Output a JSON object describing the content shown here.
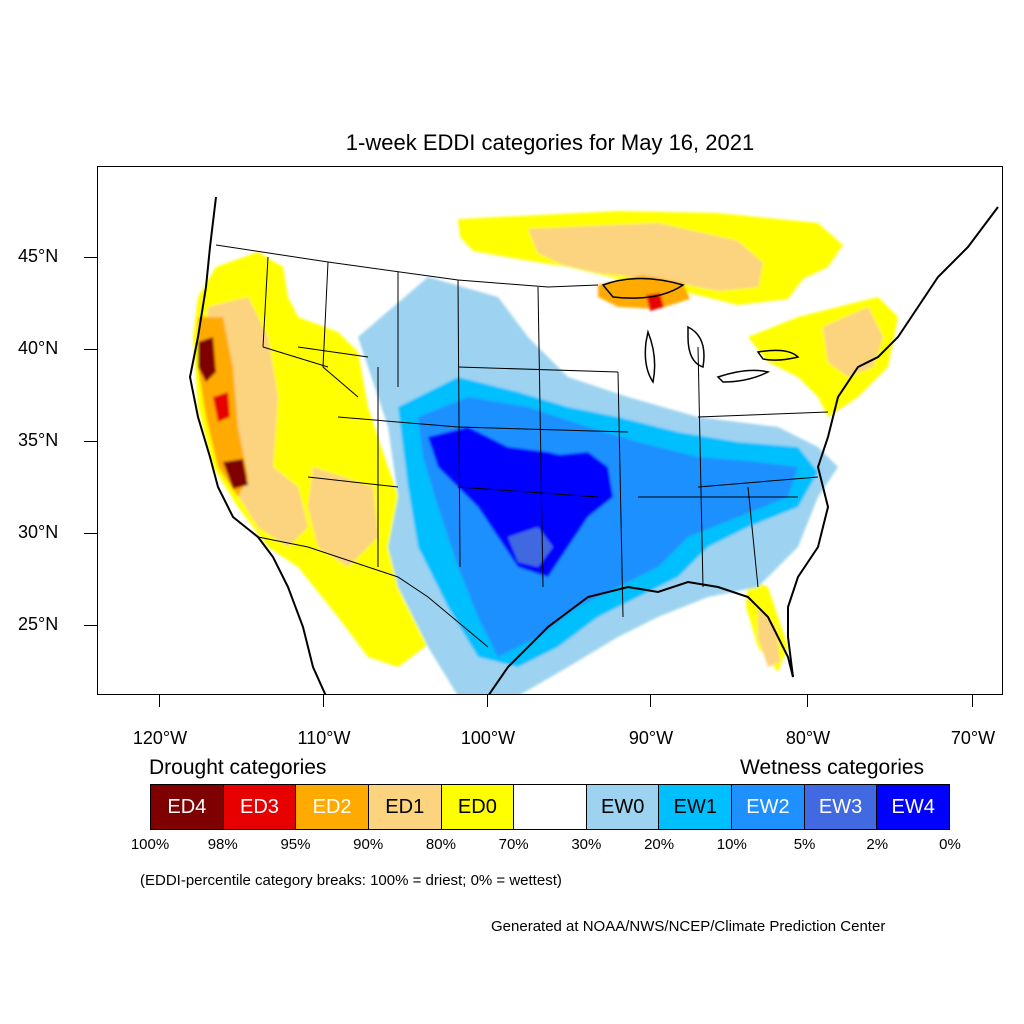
{
  "title": "1-week EDDI categories for May 16, 2021",
  "lat_labels": [
    "45°N",
    "40°N",
    "35°N",
    "30°N",
    "25°N"
  ],
  "lon_labels": [
    "120°W",
    "110°W",
    "100°W",
    "90°W",
    "80°W",
    "70°W"
  ],
  "legend": {
    "drought_title": "Drought categories",
    "wetness_title": "Wetness categories",
    "cells": [
      {
        "label": "ED4",
        "color": "#7f0000",
        "text_color": "#ffffff"
      },
      {
        "label": "ED3",
        "color": "#e60000",
        "text_color": "#ffffff"
      },
      {
        "label": "ED2",
        "color": "#ffaa00",
        "text_color": "#ffffff"
      },
      {
        "label": "ED1",
        "color": "#fcd37f",
        "text_color": "#000000"
      },
      {
        "label": "ED0",
        "color": "#ffff00",
        "text_color": "#000000"
      },
      {
        "label": "",
        "color": "#ffffff",
        "text_color": "#000000"
      },
      {
        "label": "EW0",
        "color": "#9dd3f0",
        "text_color": "#000000"
      },
      {
        "label": "EW1",
        "color": "#00bfff",
        "text_color": "#000000"
      },
      {
        "label": "EW2",
        "color": "#1e90ff",
        "text_color": "#ffffff"
      },
      {
        "label": "EW3",
        "color": "#4169e1",
        "text_color": "#ffffff"
      },
      {
        "label": "EW4",
        "color": "#0000ff",
        "text_color": "#ffffff"
      }
    ],
    "percentiles": [
      "100%",
      "98%",
      "95%",
      "90%",
      "80%",
      "70%",
      "30%",
      "20%",
      "10%",
      "5%",
      "2%",
      "0%"
    ]
  },
  "note": "(EDDI-percentile category breaks: 100% = driest; 0% = wettest)",
  "credit": "Generated at NOAA/NWS/NCEP/Climate Prediction Center"
}
